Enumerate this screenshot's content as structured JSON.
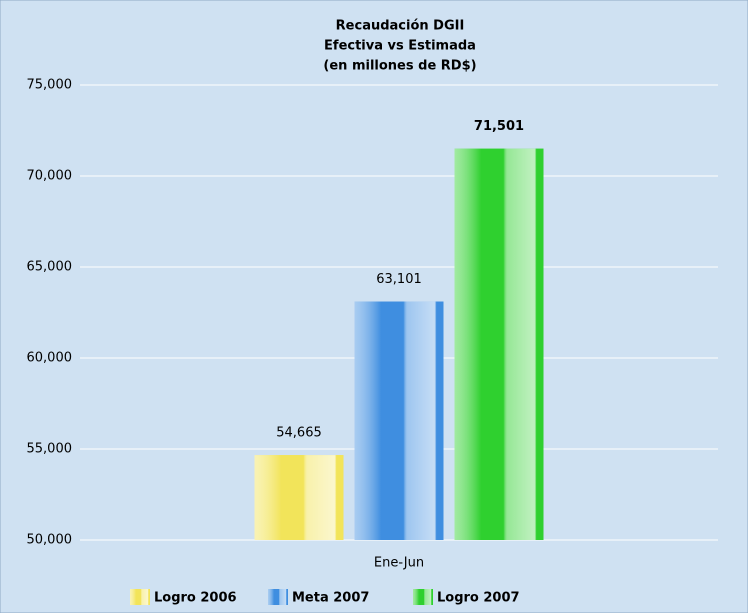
{
  "chart_data": {
    "type": "bar",
    "title": [
      "Recaudación DGII",
      "Efectiva vs Estimada",
      "(en millones de RD$)"
    ],
    "categories": [
      "Ene-Jun"
    ],
    "series": [
      {
        "name": "Logro 2006",
        "color": "#f2e45a",
        "values": [
          54665
        ],
        "value_labels": [
          "54,665"
        ]
      },
      {
        "name": "Meta 2007",
        "color": "#3f8ee0",
        "values": [
          63101
        ],
        "value_labels": [
          "63,101"
        ]
      },
      {
        "name": "Logro 2007",
        "color": "#2fd02f",
        "values": [
          71501
        ],
        "value_labels": [
          "71,501"
        ]
      }
    ],
    "ylim": [
      50000,
      75000
    ],
    "yticks": [
      {
        "value": 50000,
        "label": "50,000"
      },
      {
        "value": 55000,
        "label": "55,000"
      },
      {
        "value": 60000,
        "label": "60,000"
      },
      {
        "value": 65000,
        "label": "65,000"
      },
      {
        "value": 70000,
        "label": "70,000"
      },
      {
        "value": 75000,
        "label": "75,000"
      }
    ],
    "grid": true,
    "legend": "bottom"
  }
}
